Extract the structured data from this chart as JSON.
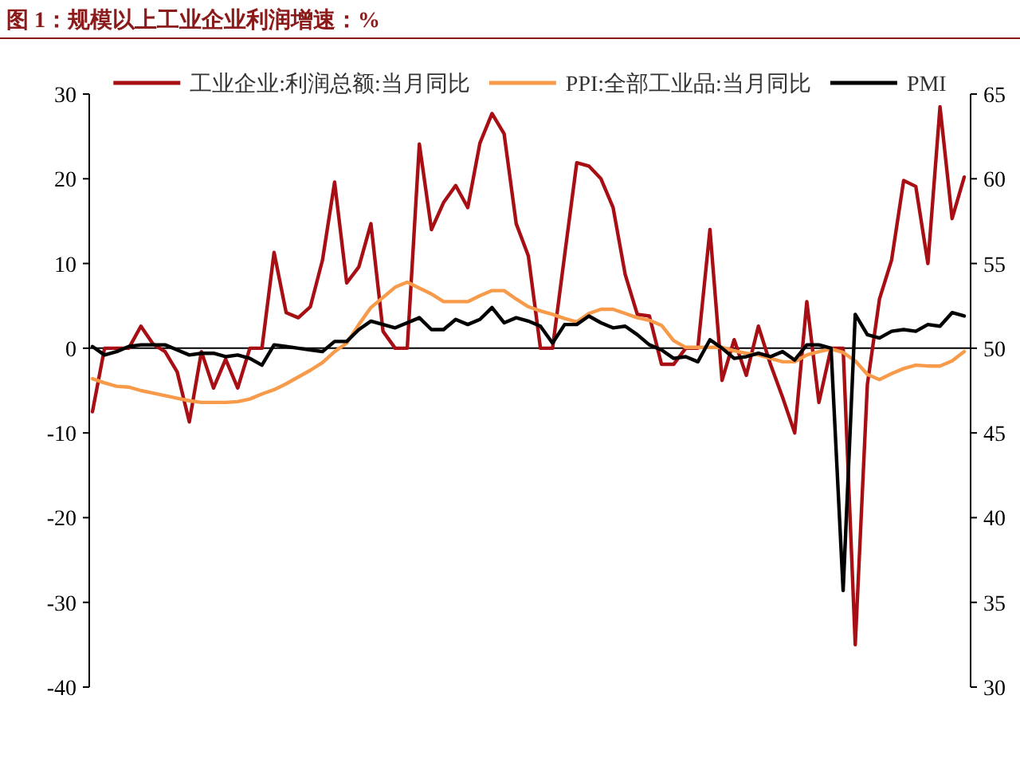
{
  "chart_data": {
    "type": "line",
    "title": "图 1：规模以上工业企业利润增速：%",
    "categories": [
      null,
      null,
      null,
      null,
      null,
      null,
      null,
      null,
      null,
      null,
      null,
      null,
      null,
      null,
      null,
      null,
      null,
      null,
      null,
      null,
      null,
      null,
      null,
      null,
      null,
      null,
      null,
      null,
      null,
      null,
      null,
      null,
      null,
      null,
      null,
      null,
      null,
      null,
      null,
      null,
      null,
      null,
      null,
      null,
      null,
      null,
      null,
      null,
      null,
      null,
      null,
      null,
      null,
      null,
      null,
      null,
      null,
      null,
      null,
      null,
      null,
      null,
      null,
      null,
      null,
      null,
      null,
      null,
      null,
      null,
      null,
      null,
      null
    ],
    "series": [
      {
        "name": "工业企业:利润总额:当月同比",
        "color": "#a80f14",
        "values": [
          -7.5,
          0,
          0,
          0,
          2.6,
          0.5,
          -0.4,
          -2.8,
          -8.7,
          -0.4,
          -4.7,
          -1.3,
          -4.7,
          0,
          0,
          11.3,
          4.2,
          3.6,
          4.9,
          10.4,
          19.6,
          7.7,
          9.6,
          14.7,
          2,
          0,
          0,
          24.1,
          14,
          17.2,
          19.2,
          16.6,
          24.2,
          27.7,
          25.3,
          14.7,
          10.9,
          0,
          0,
          11,
          21.9,
          21.5,
          20,
          16.6,
          8.7,
          4,
          3.8,
          -1.9,
          -1.9,
          0,
          0,
          14,
          -3.8,
          1,
          -3.2,
          2.6,
          -1.9,
          -5.8,
          -10,
          5.5,
          -6.4,
          0,
          0,
          -35,
          -4.3,
          5.8,
          10.4,
          19.8,
          19.1,
          10,
          28.5,
          15.3,
          20.2
        ]
      },
      {
        "name": "PPI:全部工业品:当月同比",
        "color": "#f79a4a",
        "values": [
          -3.6,
          -4.1,
          -4.5,
          -4.6,
          -5.0,
          -5.3,
          -5.6,
          -5.9,
          -6.2,
          -6.4,
          -6.4,
          -6.4,
          -6.3,
          -6.0,
          -5.4,
          -4.9,
          -4.2,
          -3.4,
          -2.6,
          -1.7,
          -0.4,
          0.6,
          2.8,
          4.8,
          6.0,
          7.2,
          7.8,
          7.1,
          6.4,
          5.5,
          5.5,
          5.5,
          6.2,
          6.8,
          6.8,
          5.8,
          4.9,
          4.4,
          4.0,
          3.5,
          3.1,
          4.1,
          4.6,
          4.6,
          4.1,
          3.6,
          3.3,
          2.7,
          0.9,
          0.1,
          0.1,
          0.1,
          0.1,
          -0.3,
          -0.6,
          -0.8,
          -1.2,
          -1.6,
          -1.6,
          -0.8,
          -0.4,
          -0.1,
          -0.5,
          -1.5,
          -3.1,
          -3.7,
          -3.0,
          -2.4,
          -2.0,
          -2.1,
          -2.1,
          -1.5,
          -0.4
        ]
      },
      {
        "name": "PMI",
        "color": "#000000",
        "axis": "y2",
        "values": [
          50.1,
          49.6,
          49.8,
          50.1,
          50.2,
          50.2,
          50.2,
          49.9,
          49.6,
          49.7,
          49.7,
          49.5,
          49.6,
          49.4,
          49.0,
          50.2,
          50.1,
          50.0,
          49.9,
          49.8,
          50.4,
          50.4,
          51.1,
          51.6,
          51.4,
          51.2,
          51.5,
          51.8,
          51.1,
          51.1,
          51.7,
          51.4,
          51.7,
          52.4,
          51.5,
          51.8,
          51.6,
          51.3,
          50.3,
          51.4,
          51.4,
          51.9,
          51.5,
          51.2,
          51.3,
          50.8,
          50.2,
          49.9,
          49.4,
          49.5,
          49.2,
          50.5,
          50.0,
          49.4,
          49.5,
          49.7,
          49.5,
          49.8,
          49.3,
          50.2,
          50.2,
          50.0,
          35.7,
          52.0,
          50.8,
          50.6,
          51.0,
          51.1,
          51.0,
          51.4,
          51.3,
          52.1,
          51.9
        ]
      }
    ],
    "ylim": [
      -40,
      30
    ],
    "yticks": [
      -40,
      -30,
      -20,
      -10,
      0,
      10,
      20,
      30
    ],
    "y2lim": [
      30,
      65
    ],
    "y2ticks": [
      30,
      35,
      40,
      45,
      50,
      55,
      60,
      65
    ],
    "ref_lines": [
      {
        "axis": "y",
        "value": 0,
        "color": "#000000"
      }
    ],
    "grid": false,
    "legend": "top",
    "line_style": "solid",
    "marker": "none"
  }
}
